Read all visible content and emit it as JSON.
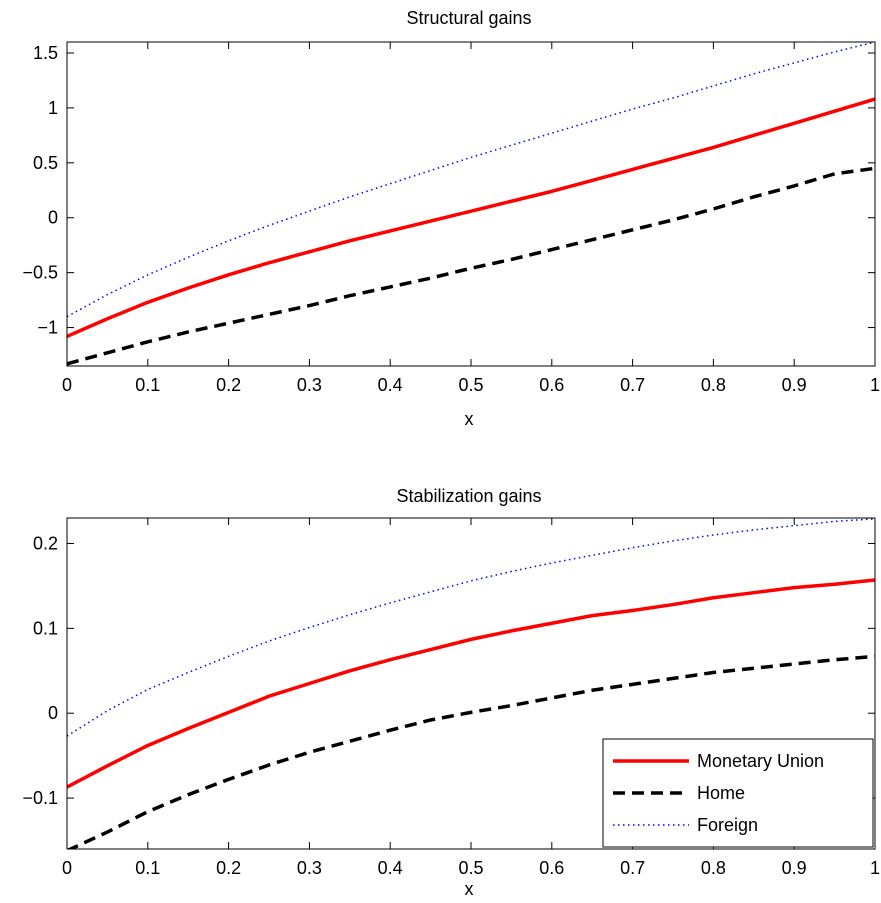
{
  "chart_data": [
    {
      "type": "line",
      "title": "Structural gains",
      "xlabel": "x",
      "ylabel": "",
      "xlim": [
        0,
        1
      ],
      "ylim": [
        -1.35,
        1.6
      ],
      "x_ticks": [
        0,
        0.1,
        0.2,
        0.3,
        0.4,
        0.5,
        0.6,
        0.7,
        0.8,
        0.9,
        1
      ],
      "x_tick_labels": [
        "0",
        "0.1",
        "0.2",
        "0.3",
        "0.4",
        "0.5",
        "0.6",
        "0.7",
        "0.8",
        "0.9",
        "1"
      ],
      "y_ticks": [
        -1,
        -0.5,
        0,
        0.5,
        1,
        1.5
      ],
      "y_tick_labels": [
        "−1",
        "−0.5",
        "0",
        "0.5",
        "1",
        "1.5"
      ],
      "grid": false,
      "x": [
        0,
        0.05,
        0.1,
        0.15,
        0.2,
        0.25,
        0.3,
        0.35,
        0.4,
        0.45,
        0.5,
        0.55,
        0.6,
        0.65,
        0.7,
        0.75,
        0.8,
        0.85,
        0.9,
        0.95,
        1
      ],
      "series": [
        {
          "name": "Monetary Union",
          "style": "solid",
          "color": "#ff0000",
          "values": [
            -1.08,
            -0.92,
            -0.77,
            -0.64,
            -0.52,
            -0.41,
            -0.31,
            -0.21,
            -0.12,
            -0.03,
            0.06,
            0.15,
            0.24,
            0.34,
            0.44,
            0.54,
            0.64,
            0.75,
            0.86,
            0.97,
            1.08
          ]
        },
        {
          "name": "Home",
          "style": "dashed",
          "color": "#000000",
          "values": [
            -1.33,
            -1.23,
            -1.13,
            -1.04,
            -0.96,
            -0.88,
            -0.8,
            -0.71,
            -0.63,
            -0.55,
            -0.46,
            -0.38,
            -0.29,
            -0.2,
            -0.11,
            -0.02,
            0.08,
            0.19,
            0.29,
            0.4,
            0.45
          ]
        },
        {
          "name": "Foreign",
          "style": "dotted",
          "color": "#0000ff",
          "values": [
            -0.9,
            -0.7,
            -0.52,
            -0.36,
            -0.21,
            -0.07,
            0.06,
            0.19,
            0.31,
            0.43,
            0.55,
            0.66,
            0.77,
            0.88,
            0.99,
            1.09,
            1.2,
            1.31,
            1.41,
            1.51,
            1.6
          ]
        }
      ]
    },
    {
      "type": "line",
      "title": "Stabilization gains",
      "xlabel": "x",
      "ylabel": "",
      "xlim": [
        0,
        1
      ],
      "ylim": [
        -0.16,
        0.23
      ],
      "x_ticks": [
        0,
        0.1,
        0.2,
        0.3,
        0.4,
        0.5,
        0.6,
        0.7,
        0.8,
        0.9,
        1
      ],
      "x_tick_labels": [
        "0",
        "0.1",
        "0.2",
        "0.3",
        "0.4",
        "0.5",
        "0.6",
        "0.7",
        "0.8",
        "0.9",
        "1"
      ],
      "y_ticks": [
        -0.1,
        0,
        0.1,
        0.2
      ],
      "y_tick_labels": [
        "−0.1",
        "0",
        "0.1",
        "0.2"
      ],
      "grid": false,
      "legend": {
        "position": "bottom-right",
        "entries": [
          "Monetary Union",
          "Home",
          "Foreign"
        ]
      },
      "x": [
        0,
        0.05,
        0.1,
        0.15,
        0.2,
        0.25,
        0.3,
        0.35,
        0.4,
        0.45,
        0.5,
        0.55,
        0.6,
        0.65,
        0.7,
        0.75,
        0.8,
        0.85,
        0.9,
        0.95,
        1
      ],
      "series": [
        {
          "name": "Monetary Union",
          "style": "solid",
          "color": "#ff0000",
          "values": [
            -0.087,
            -0.062,
            -0.038,
            -0.018,
            0.001,
            0.02,
            0.035,
            0.05,
            0.063,
            0.075,
            0.087,
            0.097,
            0.106,
            0.115,
            0.121,
            0.128,
            0.136,
            0.142,
            0.148,
            0.152,
            0.157
          ]
        },
        {
          "name": "Home",
          "style": "dashed",
          "color": "#000000",
          "values": [
            -0.162,
            -0.14,
            -0.116,
            -0.096,
            -0.078,
            -0.061,
            -0.046,
            -0.033,
            -0.02,
            -0.008,
            0.001,
            0.009,
            0.018,
            0.027,
            0.034,
            0.041,
            0.048,
            0.053,
            0.058,
            0.063,
            0.067
          ]
        },
        {
          "name": "Foreign",
          "style": "dotted",
          "color": "#0000ff",
          "values": [
            -0.027,
            0.003,
            0.028,
            0.048,
            0.067,
            0.085,
            0.101,
            0.116,
            0.13,
            0.143,
            0.156,
            0.167,
            0.177,
            0.186,
            0.195,
            0.203,
            0.21,
            0.216,
            0.221,
            0.226,
            0.229
          ]
        }
      ]
    }
  ]
}
